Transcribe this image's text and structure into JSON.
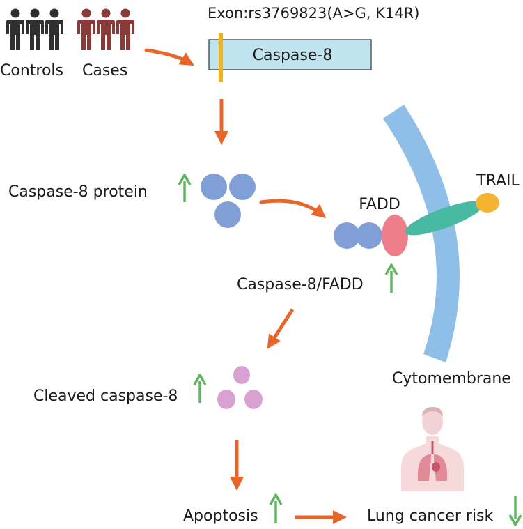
{
  "groups": {
    "controls_label": "Controls",
    "cases_label": "Cases",
    "controls_color": "#2f2f2f",
    "cases_color": "#8b3a3a"
  },
  "gene": {
    "variant_label": "Exon:rs3769823(A>G, K14R)",
    "gene_label": "Caspase-8",
    "box_color": "#bfe3ef",
    "marker_color": "#f2b21b"
  },
  "steps": {
    "protein_label": "Caspase-8 protein",
    "fadd_label": "FADD",
    "trail_label": "TRAIL",
    "complex_label": "Caspase-8/FADD",
    "cleaved_label": "Cleaved caspase-8",
    "membrane_label": "Cytomembrane",
    "apoptosis_label": "Apoptosis",
    "risk_label": "Lung cancer risk"
  },
  "indicators": {
    "protein": "up",
    "complex": "up",
    "cleaved": "up",
    "apoptosis": "up",
    "risk": "down"
  },
  "colors": {
    "flow_arrow": "#e8662a",
    "indicator_arrow": "#5cb85c",
    "protein_circle": "#7f9fd6",
    "fadd": "#f07d8a",
    "receptor": "#48b9a2",
    "trail": "#f5b332",
    "membrane": "#8fbfe8",
    "cleaved_circle": "#d9a0d2"
  },
  "icons": {
    "people": "person-icon",
    "human": "human-lungs-icon"
  }
}
